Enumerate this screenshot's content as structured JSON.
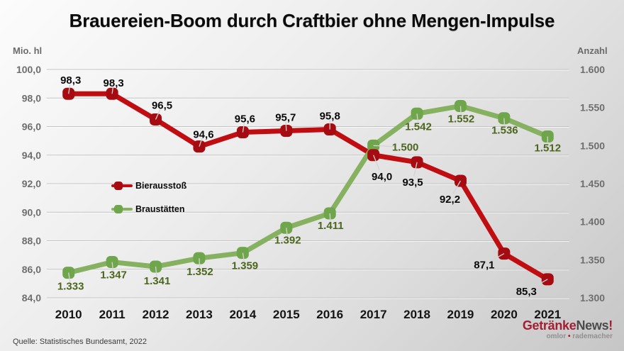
{
  "title": "Brauereien-Boom durch Craftbier ohne Mengen-Impulse",
  "source_note": "Quelle: Statistisches Bundesamt, 2022",
  "logo": {
    "brand_red": "Getränke",
    "brand_dark": "News",
    "brand_bang": "!",
    "tagline_left": "omlor",
    "tagline_sep": "•",
    "tagline_right": "rademacher"
  },
  "chart_data": {
    "type": "line",
    "title": "Brauereien-Boom durch Craftbier ohne Mengen-Impulse",
    "grid": true,
    "legend_position": "inside-left",
    "categories": [
      "2010",
      "2011",
      "2012",
      "2013",
      "2014",
      "2015",
      "2016",
      "2017",
      "2018",
      "2019",
      "2020",
      "2021"
    ],
    "series": [
      {
        "id": "bierausstoss",
        "name": "Bierausstoß",
        "axis": "left",
        "unit": "Mio. hl",
        "color": "#c00d12",
        "marker_color": "#a50b10",
        "label_color": "#0a0a0a",
        "values": [
          98.3,
          98.3,
          96.5,
          94.6,
          95.6,
          95.7,
          95.8,
          94.0,
          93.5,
          92.2,
          87.1,
          85.3
        ],
        "value_labels": [
          "98,3",
          "98,3",
          "96,5",
          "94,6",
          "95,6",
          "95,7",
          "95,8",
          "94,0",
          "93,5",
          "92,2",
          "87,1",
          "85,3"
        ]
      },
      {
        "id": "braustaetten",
        "name": "Braustätten",
        "axis": "right",
        "unit": "Anzahl",
        "color": "#85b161",
        "marker_color": "#6fa64c",
        "label_color": "#4c661d",
        "values": [
          1333,
          1347,
          1341,
          1352,
          1359,
          1392,
          1411,
          1500,
          1542,
          1552,
          1536,
          1512
        ],
        "value_labels": [
          "1.333",
          "1.347",
          "1.341",
          "1.352",
          "1.359",
          "1.392",
          "1.411",
          "1.500",
          "1.542",
          "1.552",
          "1.536",
          "1.512"
        ]
      }
    ],
    "left_axis": {
      "title": "Mio. hl",
      "min": 84,
      "max": 100,
      "step": 2,
      "tick_labels": [
        "100,0",
        "98,0",
        "96,0",
        "94,0",
        "92,0",
        "90,0",
        "88,0",
        "86,0",
        "84,0"
      ]
    },
    "right_axis": {
      "title": "Anzahl",
      "min": 1300,
      "max": 1600,
      "step": 50,
      "tick_labels": [
        "1.600",
        "1.550",
        "1.500",
        "1.450",
        "1.400",
        "1.350",
        "1.300"
      ]
    }
  }
}
